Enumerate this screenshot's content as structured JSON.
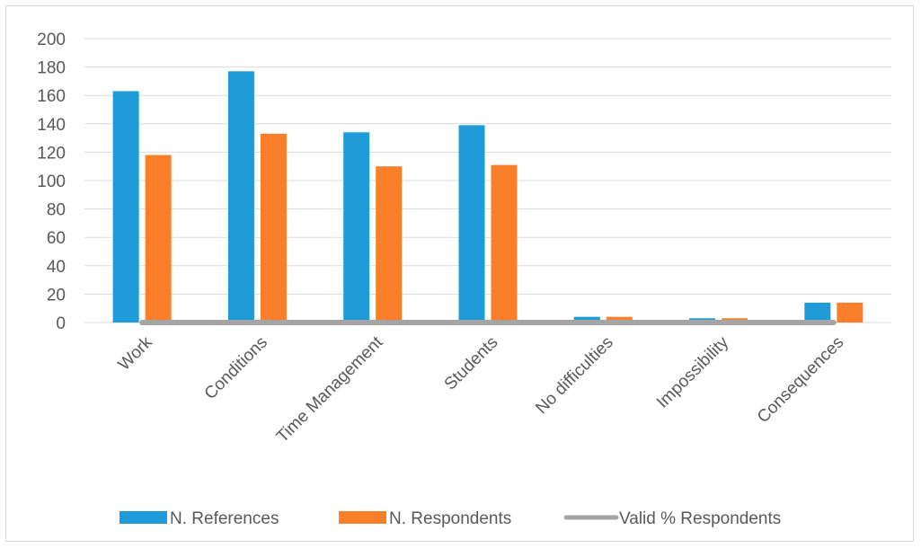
{
  "chart_data": {
    "type": "bar",
    "categories": [
      "Work",
      "Conditions",
      "Time Management",
      "Students",
      "No difficulties",
      "Impossibility",
      "Consequences"
    ],
    "series": [
      {
        "name": "N. References",
        "kind": "bar",
        "color": "#1f9bd7",
        "values": [
          163,
          177,
          134,
          139,
          4,
          3,
          14
        ]
      },
      {
        "name": "N. Respondents",
        "kind": "bar",
        "color": "#fb7f2a",
        "values": [
          118,
          133,
          110,
          111,
          4,
          3,
          14
        ]
      },
      {
        "name": "Valid % Respondents",
        "kind": "line",
        "color": "#a5a5a5",
        "values": [
          0,
          0,
          0,
          0,
          0,
          0,
          0
        ]
      }
    ],
    "ylim": [
      0,
      200
    ],
    "yticks": [
      0,
      20,
      40,
      60,
      80,
      100,
      120,
      140,
      160,
      180,
      200
    ],
    "grid": true,
    "legend_position": "bottom"
  }
}
